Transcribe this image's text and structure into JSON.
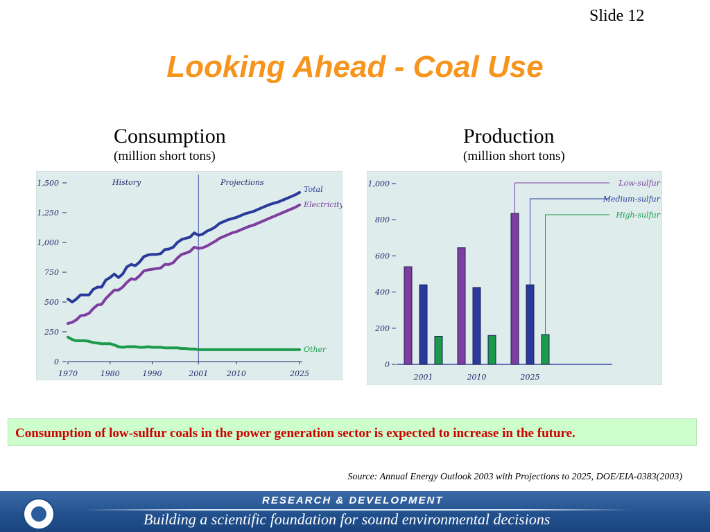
{
  "slide": {
    "number": "Slide 12",
    "title": "Looking Ahead - Coal Use",
    "caption": "Consumption of low-sulfur coals in the power generation sector is expected to increase in the future.",
    "source": "Source: Annual Energy Outlook 2003 with Projections to 2025, DOE/EIA-0383(2003)"
  },
  "footer": {
    "heading": "RESEARCH & DEVELOPMENT",
    "tagline": "Building a scientific foundation for sound environmental decisions"
  },
  "colors": {
    "title": "#f7941d",
    "caption_text": "#cc0000",
    "caption_bg": "#ccffcc",
    "chart_bg": "#deeceb",
    "total": "#2b3a9a",
    "electricity": "#7d3ea0",
    "other": "#1a9a4a",
    "low_sulfur": "#7d3ea0",
    "medium_sulfur": "#2b3a9a",
    "high_sulfur": "#1a9a4a",
    "footer": "#214f8c"
  },
  "chart_data": [
    {
      "type": "line",
      "title": "Consumption",
      "subtitle": "(million short tons)",
      "x_ticks": [
        "1970",
        "1980",
        "1990",
        "2001",
        "2010",
        "2025"
      ],
      "y_ticks": [
        "0",
        "250",
        "500",
        "750",
        "1,000",
        "1,250",
        "1,500"
      ],
      "xlim": [
        1970,
        2025
      ],
      "ylim": [
        0,
        1500
      ],
      "divider_x": 2001,
      "region_labels": [
        "History",
        "Projections"
      ],
      "series": [
        {
          "name": "Total",
          "color": "#2b3a9a",
          "x": [
            1970,
            1971,
            1972,
            1973,
            1974,
            1975,
            1976,
            1977,
            1978,
            1979,
            1980,
            1981,
            1982,
            1983,
            1984,
            1985,
            1986,
            1987,
            1988,
            1989,
            1990,
            1991,
            1992,
            1993,
            1994,
            1995,
            1996,
            1997,
            1998,
            1999,
            2000,
            2001,
            2002,
            2003,
            2004,
            2005,
            2006,
            2007,
            2008,
            2009,
            2010,
            2011,
            2012,
            2013,
            2014,
            2015,
            2016,
            2017,
            2018,
            2019,
            2020,
            2021,
            2022,
            2023,
            2024,
            2025
          ],
          "values": [
            525,
            500,
            525,
            560,
            560,
            560,
            605,
            625,
            625,
            685,
            705,
            735,
            705,
            735,
            795,
            815,
            805,
            835,
            880,
            895,
            900,
            900,
            905,
            940,
            945,
            960,
            1000,
            1025,
            1035,
            1045,
            1080,
            1060,
            1070,
            1095,
            1110,
            1130,
            1160,
            1175,
            1190,
            1200,
            1210,
            1225,
            1240,
            1250,
            1260,
            1275,
            1290,
            1305,
            1320,
            1330,
            1340,
            1355,
            1370,
            1385,
            1400,
            1420
          ]
        },
        {
          "name": "Electricity",
          "color": "#7d3ea0",
          "x": [
            1970,
            1971,
            1972,
            1973,
            1974,
            1975,
            1976,
            1977,
            1978,
            1979,
            1980,
            1981,
            1982,
            1983,
            1984,
            1985,
            1986,
            1987,
            1988,
            1989,
            1990,
            1991,
            1992,
            1993,
            1994,
            1995,
            1996,
            1997,
            1998,
            1999,
            2000,
            2001,
            2002,
            2003,
            2004,
            2005,
            2006,
            2007,
            2008,
            2009,
            2010,
            2011,
            2012,
            2013,
            2014,
            2015,
            2016,
            2017,
            2018,
            2019,
            2020,
            2021,
            2022,
            2023,
            2024,
            2025
          ],
          "values": [
            320,
            330,
            350,
            385,
            390,
            405,
            445,
            475,
            480,
            530,
            565,
            600,
            600,
            625,
            665,
            695,
            690,
            720,
            760,
            770,
            775,
            780,
            785,
            815,
            815,
            830,
            870,
            900,
            910,
            925,
            960,
            950,
            955,
            970,
            990,
            1010,
            1035,
            1050,
            1065,
            1080,
            1090,
            1105,
            1120,
            1135,
            1145,
            1160,
            1175,
            1190,
            1205,
            1220,
            1235,
            1250,
            1265,
            1280,
            1295,
            1315
          ]
        },
        {
          "name": "Other",
          "color": "#1a9a4a",
          "x": [
            1970,
            1971,
            1972,
            1973,
            1974,
            1975,
            1976,
            1977,
            1978,
            1979,
            1980,
            1981,
            1982,
            1983,
            1984,
            1985,
            1986,
            1987,
            1988,
            1989,
            1990,
            1991,
            1992,
            1993,
            1994,
            1995,
            1996,
            1997,
            1998,
            1999,
            2000,
            2001,
            2002,
            2003,
            2004,
            2005,
            2006,
            2007,
            2008,
            2009,
            2010,
            2011,
            2012,
            2013,
            2014,
            2015,
            2016,
            2017,
            2018,
            2019,
            2020,
            2021,
            2022,
            2023,
            2024,
            2025
          ],
          "values": [
            205,
            185,
            175,
            175,
            175,
            170,
            160,
            155,
            150,
            150,
            150,
            140,
            125,
            120,
            125,
            125,
            125,
            120,
            120,
            125,
            120,
            120,
            120,
            115,
            115,
            115,
            115,
            110,
            110,
            105,
            105,
            100,
            100,
            100,
            100,
            100,
            100,
            100,
            100,
            100,
            100,
            100,
            100,
            100,
            100,
            100,
            100,
            100,
            100,
            100,
            100,
            100,
            100,
            100,
            100,
            100
          ]
        }
      ]
    },
    {
      "type": "bar",
      "title": "Production",
      "subtitle": "(million short tons)",
      "categories": [
        "2001",
        "2010",
        "2025"
      ],
      "y_ticks": [
        "0",
        "200",
        "400",
        "600",
        "800",
        "1,000"
      ],
      "ylim": [
        0,
        1000
      ],
      "series": [
        {
          "name": "Low-sulfur",
          "color": "#7d3ea0",
          "values": [
            540,
            645,
            835
          ]
        },
        {
          "name": "Medium-sulfur",
          "color": "#2b3a9a",
          "values": [
            440,
            425,
            440
          ]
        },
        {
          "name": "High-sulfur",
          "color": "#1a9a4a",
          "values": [
            155,
            160,
            165
          ]
        }
      ]
    }
  ]
}
